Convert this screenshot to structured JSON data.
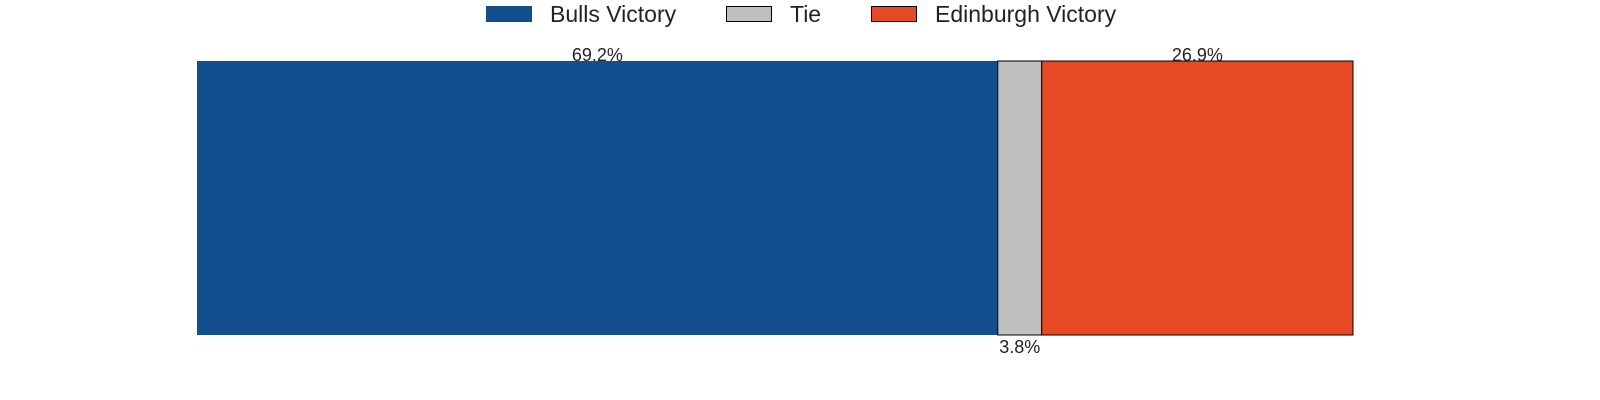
{
  "chart_data": {
    "type": "bar",
    "orientation": "horizontal-stacked",
    "categories": [
      "Bulls Victory",
      "Tie",
      "Edinburgh Victory"
    ],
    "values": [
      69.2,
      3.8,
      26.9
    ],
    "value_labels": [
      "69.2%",
      "3.8%",
      "26.9%"
    ],
    "unit": "%",
    "colors": [
      "#134f8e",
      "#bfbfbf",
      "#e64a24"
    ],
    "legend": {
      "placement": "top-center",
      "entries": [
        "Bulls Victory",
        "Tie",
        "Edinburgh Victory"
      ]
    },
    "title": "",
    "xlabel": "",
    "ylabel": "",
    "grid": false,
    "axes_visible": false
  }
}
